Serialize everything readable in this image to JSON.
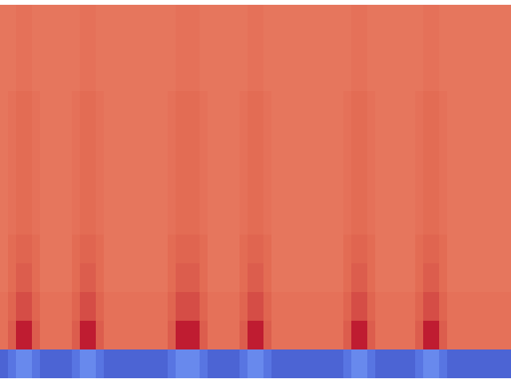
{
  "chart_data": {
    "type": "heatmap",
    "tick_labels": false,
    "color_range": [
      0,
      1
    ],
    "cells": [
      [
        0.85,
        0.85,
        0.86,
        0.86,
        0.85,
        0.85,
        0.85,
        0.85,
        0.85,
        0.85,
        0.86,
        0.86,
        0.85,
        0.85,
        0.85,
        0.85,
        0.85,
        0.85,
        0.85,
        0.85,
        0.85,
        0.85,
        0.86,
        0.86,
        0.86,
        0.85,
        0.85,
        0.85,
        0.85,
        0.85,
        0.85,
        0.86,
        0.86,
        0.85,
        0.85,
        0.85,
        0.85,
        0.85,
        0.85,
        0.85,
        0.85,
        0.85,
        0.85,
        0.85,
        0.86,
        0.86,
        0.85,
        0.85,
        0.85,
        0.85,
        0.85,
        0.85,
        0.85,
        0.86,
        0.86,
        0.85,
        0.85,
        0.85,
        0.85,
        0.85,
        0.85,
        0.85,
        0.85,
        0.85
      ],
      [
        0.85,
        0.85,
        0.86,
        0.86,
        0.85,
        0.85,
        0.85,
        0.85,
        0.85,
        0.85,
        0.86,
        0.86,
        0.85,
        0.85,
        0.85,
        0.85,
        0.85,
        0.85,
        0.85,
        0.85,
        0.85,
        0.85,
        0.86,
        0.86,
        0.86,
        0.85,
        0.85,
        0.85,
        0.85,
        0.85,
        0.85,
        0.86,
        0.86,
        0.85,
        0.85,
        0.85,
        0.85,
        0.85,
        0.85,
        0.85,
        0.85,
        0.85,
        0.85,
        0.85,
        0.86,
        0.86,
        0.85,
        0.85,
        0.85,
        0.85,
        0.85,
        0.85,
        0.85,
        0.86,
        0.86,
        0.85,
        0.85,
        0.85,
        0.85,
        0.85,
        0.85,
        0.85,
        0.85,
        0.85
      ],
      [
        0.85,
        0.85,
        0.86,
        0.86,
        0.85,
        0.85,
        0.85,
        0.85,
        0.85,
        0.85,
        0.86,
        0.86,
        0.85,
        0.85,
        0.85,
        0.85,
        0.85,
        0.85,
        0.85,
        0.85,
        0.85,
        0.85,
        0.86,
        0.86,
        0.86,
        0.85,
        0.85,
        0.85,
        0.85,
        0.85,
        0.85,
        0.86,
        0.86,
        0.85,
        0.85,
        0.85,
        0.85,
        0.85,
        0.85,
        0.85,
        0.85,
        0.85,
        0.85,
        0.85,
        0.86,
        0.86,
        0.85,
        0.85,
        0.85,
        0.85,
        0.85,
        0.85,
        0.85,
        0.86,
        0.86,
        0.85,
        0.85,
        0.85,
        0.85,
        0.85,
        0.85,
        0.85,
        0.85,
        0.85
      ],
      [
        0.85,
        0.86,
        0.87,
        0.87,
        0.86,
        0.85,
        0.85,
        0.85,
        0.85,
        0.86,
        0.87,
        0.87,
        0.86,
        0.85,
        0.85,
        0.85,
        0.85,
        0.85,
        0.85,
        0.85,
        0.85,
        0.86,
        0.87,
        0.87,
        0.87,
        0.86,
        0.85,
        0.85,
        0.85,
        0.85,
        0.86,
        0.87,
        0.87,
        0.86,
        0.85,
        0.85,
        0.85,
        0.85,
        0.85,
        0.85,
        0.85,
        0.85,
        0.85,
        0.86,
        0.87,
        0.87,
        0.86,
        0.85,
        0.85,
        0.85,
        0.85,
        0.85,
        0.86,
        0.87,
        0.87,
        0.86,
        0.85,
        0.85,
        0.85,
        0.85,
        0.85,
        0.85,
        0.85,
        0.85
      ],
      [
        0.85,
        0.86,
        0.87,
        0.87,
        0.86,
        0.85,
        0.85,
        0.85,
        0.85,
        0.86,
        0.87,
        0.87,
        0.86,
        0.85,
        0.85,
        0.85,
        0.85,
        0.85,
        0.85,
        0.85,
        0.85,
        0.86,
        0.87,
        0.87,
        0.87,
        0.86,
        0.85,
        0.85,
        0.85,
        0.85,
        0.86,
        0.87,
        0.87,
        0.86,
        0.85,
        0.85,
        0.85,
        0.85,
        0.85,
        0.85,
        0.85,
        0.85,
        0.85,
        0.86,
        0.87,
        0.87,
        0.86,
        0.85,
        0.85,
        0.85,
        0.85,
        0.85,
        0.86,
        0.87,
        0.87,
        0.86,
        0.85,
        0.85,
        0.85,
        0.85,
        0.85,
        0.85,
        0.85,
        0.85
      ],
      [
        0.85,
        0.86,
        0.87,
        0.87,
        0.86,
        0.85,
        0.85,
        0.85,
        0.85,
        0.86,
        0.87,
        0.87,
        0.86,
        0.85,
        0.85,
        0.85,
        0.85,
        0.85,
        0.85,
        0.85,
        0.85,
        0.86,
        0.87,
        0.87,
        0.87,
        0.86,
        0.85,
        0.85,
        0.85,
        0.85,
        0.86,
        0.87,
        0.87,
        0.86,
        0.85,
        0.85,
        0.85,
        0.85,
        0.85,
        0.85,
        0.85,
        0.85,
        0.85,
        0.86,
        0.87,
        0.87,
        0.86,
        0.85,
        0.85,
        0.85,
        0.85,
        0.85,
        0.86,
        0.87,
        0.87,
        0.86,
        0.85,
        0.85,
        0.85,
        0.85,
        0.85,
        0.85,
        0.85,
        0.85
      ],
      [
        0.85,
        0.86,
        0.87,
        0.87,
        0.86,
        0.85,
        0.85,
        0.85,
        0.85,
        0.86,
        0.87,
        0.87,
        0.86,
        0.85,
        0.85,
        0.85,
        0.85,
        0.85,
        0.85,
        0.85,
        0.85,
        0.86,
        0.87,
        0.87,
        0.87,
        0.86,
        0.85,
        0.85,
        0.85,
        0.85,
        0.86,
        0.87,
        0.87,
        0.86,
        0.85,
        0.85,
        0.85,
        0.85,
        0.85,
        0.85,
        0.85,
        0.85,
        0.85,
        0.86,
        0.87,
        0.87,
        0.86,
        0.85,
        0.85,
        0.85,
        0.85,
        0.85,
        0.86,
        0.87,
        0.87,
        0.86,
        0.85,
        0.85,
        0.85,
        0.85,
        0.85,
        0.85,
        0.85,
        0.85
      ],
      [
        0.85,
        0.86,
        0.87,
        0.87,
        0.86,
        0.85,
        0.85,
        0.85,
        0.85,
        0.86,
        0.87,
        0.87,
        0.86,
        0.85,
        0.85,
        0.85,
        0.85,
        0.85,
        0.85,
        0.85,
        0.85,
        0.86,
        0.87,
        0.87,
        0.87,
        0.86,
        0.85,
        0.85,
        0.85,
        0.85,
        0.86,
        0.87,
        0.87,
        0.86,
        0.85,
        0.85,
        0.85,
        0.85,
        0.85,
        0.85,
        0.85,
        0.85,
        0.85,
        0.86,
        0.87,
        0.87,
        0.86,
        0.85,
        0.85,
        0.85,
        0.85,
        0.85,
        0.86,
        0.87,
        0.87,
        0.86,
        0.85,
        0.85,
        0.85,
        0.85,
        0.85,
        0.85,
        0.85,
        0.85
      ],
      [
        0.85,
        0.87,
        0.88,
        0.88,
        0.87,
        0.85,
        0.85,
        0.85,
        0.85,
        0.87,
        0.88,
        0.88,
        0.87,
        0.85,
        0.85,
        0.85,
        0.85,
        0.85,
        0.85,
        0.85,
        0.85,
        0.87,
        0.88,
        0.88,
        0.88,
        0.87,
        0.85,
        0.85,
        0.85,
        0.85,
        0.87,
        0.88,
        0.88,
        0.87,
        0.85,
        0.85,
        0.85,
        0.85,
        0.85,
        0.85,
        0.85,
        0.85,
        0.85,
        0.87,
        0.88,
        0.88,
        0.87,
        0.85,
        0.85,
        0.85,
        0.85,
        0.85,
        0.87,
        0.88,
        0.88,
        0.87,
        0.85,
        0.85,
        0.85,
        0.85,
        0.85,
        0.85,
        0.85,
        0.85
      ],
      [
        0.85,
        0.87,
        0.89,
        0.89,
        0.87,
        0.85,
        0.85,
        0.85,
        0.85,
        0.87,
        0.89,
        0.89,
        0.87,
        0.85,
        0.85,
        0.85,
        0.85,
        0.85,
        0.85,
        0.85,
        0.85,
        0.87,
        0.89,
        0.89,
        0.89,
        0.87,
        0.85,
        0.85,
        0.85,
        0.85,
        0.87,
        0.89,
        0.89,
        0.87,
        0.85,
        0.85,
        0.85,
        0.85,
        0.85,
        0.85,
        0.85,
        0.85,
        0.85,
        0.87,
        0.89,
        0.89,
        0.87,
        0.85,
        0.85,
        0.85,
        0.85,
        0.85,
        0.87,
        0.89,
        0.89,
        0.87,
        0.85,
        0.85,
        0.85,
        0.85,
        0.85,
        0.85,
        0.85,
        0.85
      ],
      [
        0.86,
        0.88,
        0.91,
        0.91,
        0.88,
        0.86,
        0.86,
        0.86,
        0.86,
        0.88,
        0.91,
        0.91,
        0.88,
        0.86,
        0.86,
        0.86,
        0.86,
        0.86,
        0.86,
        0.86,
        0.86,
        0.88,
        0.91,
        0.91,
        0.91,
        0.88,
        0.86,
        0.86,
        0.86,
        0.86,
        0.88,
        0.91,
        0.91,
        0.88,
        0.86,
        0.86,
        0.86,
        0.86,
        0.86,
        0.86,
        0.86,
        0.86,
        0.86,
        0.88,
        0.91,
        0.91,
        0.88,
        0.86,
        0.86,
        0.86,
        0.86,
        0.86,
        0.88,
        0.91,
        0.91,
        0.88,
        0.86,
        0.86,
        0.86,
        0.86,
        0.86,
        0.86,
        0.86,
        0.86
      ],
      [
        0.86,
        0.89,
        0.97,
        0.97,
        0.89,
        0.86,
        0.86,
        0.86,
        0.86,
        0.89,
        0.97,
        0.97,
        0.89,
        0.86,
        0.86,
        0.86,
        0.86,
        0.86,
        0.86,
        0.86,
        0.86,
        0.89,
        0.97,
        0.97,
        0.97,
        0.89,
        0.86,
        0.86,
        0.86,
        0.86,
        0.89,
        0.97,
        0.97,
        0.89,
        0.86,
        0.86,
        0.86,
        0.86,
        0.86,
        0.86,
        0.86,
        0.86,
        0.86,
        0.89,
        0.97,
        0.97,
        0.89,
        0.86,
        0.86,
        0.86,
        0.86,
        0.86,
        0.89,
        0.97,
        0.97,
        0.89,
        0.86,
        0.86,
        0.86,
        0.86,
        0.86,
        0.86,
        0.86,
        0.86
      ],
      [
        0.07,
        0.12,
        0.18,
        0.18,
        0.12,
        0.07,
        0.07,
        0.07,
        0.07,
        0.12,
        0.18,
        0.18,
        0.12,
        0.07,
        0.07,
        0.07,
        0.07,
        0.07,
        0.07,
        0.07,
        0.07,
        0.12,
        0.18,
        0.18,
        0.18,
        0.12,
        0.07,
        0.07,
        0.07,
        0.07,
        0.12,
        0.18,
        0.18,
        0.12,
        0.07,
        0.07,
        0.07,
        0.07,
        0.07,
        0.07,
        0.07,
        0.07,
        0.07,
        0.12,
        0.18,
        0.18,
        0.12,
        0.07,
        0.07,
        0.07,
        0.07,
        0.07,
        0.12,
        0.18,
        0.18,
        0.12,
        0.07,
        0.07,
        0.07,
        0.07,
        0.07,
        0.07,
        0.07,
        0.07
      ]
    ]
  }
}
